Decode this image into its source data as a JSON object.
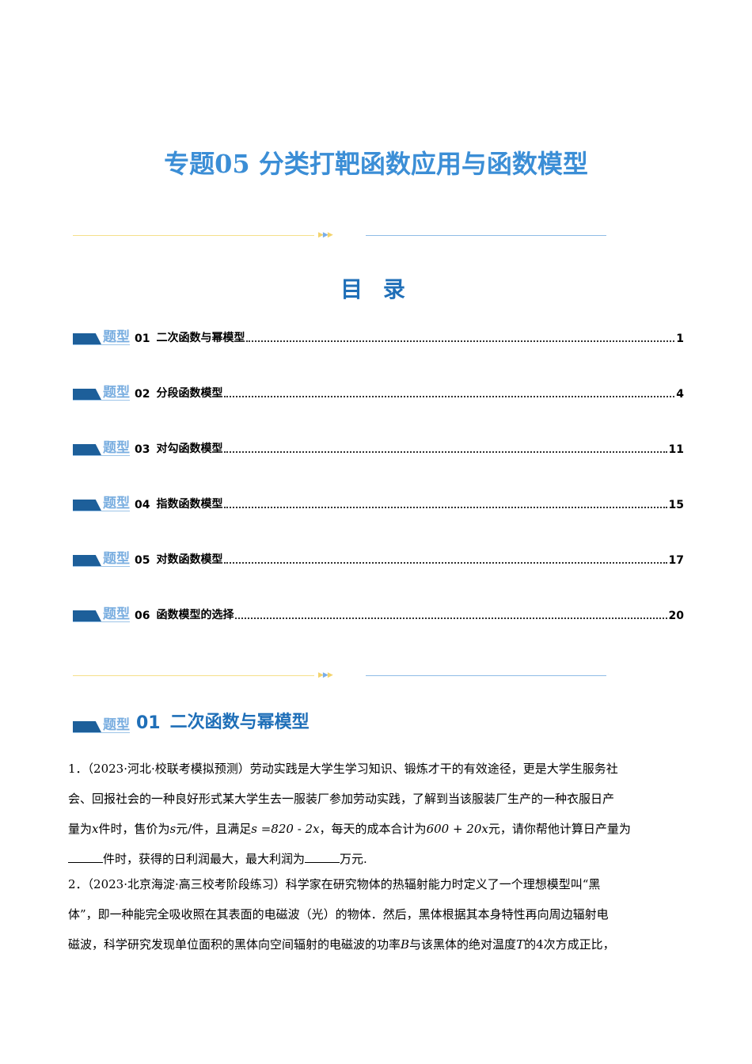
{
  "title": "专题05 分类打靶函数应用与函数模型",
  "toc_title": "目 录",
  "badge_text": "题型",
  "toc": [
    {
      "num": "01",
      "label": "二次函数与幂模型",
      "page": "1"
    },
    {
      "num": "02",
      "label": "分段函数模型",
      "page": "4"
    },
    {
      "num": "03",
      "label": "对勾函数模型",
      "page": "11"
    },
    {
      "num": "04",
      "label": "指数函数模型",
      "page": "15"
    },
    {
      "num": "05",
      "label": "对数函数模型",
      "page": "17"
    },
    {
      "num": "06",
      "label": "函数模型的选择",
      "page": "20"
    }
  ],
  "section": {
    "num": "01",
    "label": "二次函数与幂模型"
  },
  "q1": {
    "l1": "1．（2023·河北·校联考模拟预测）劳动实践是大学生学习知识、锻炼才干的有效途径，更是大学生服务社",
    "l2": "会、回报社会的一种良好形式某大学生去一服装厂参加劳动实践，了解到当该服装厂生产的一种衣服日产",
    "l3a": "量为",
    "x": "x",
    "l3b": "件时，售价为",
    "s": "s",
    "l3c": "元/件，且满足",
    "eq1": "s =820 - 2x",
    "l3d": "，每天的成本合计为",
    "eq2": "600 + 20x",
    "l3e": "元，请你帮他计算日产量为",
    "l4a": "件时，获得的日利润最大，最大利润为",
    "l4b": "万元."
  },
  "q2": {
    "l1": "2．（2023·北京海淀·高三校考阶段练习）科学家在研究物体的热辐射能力时定义了一个理想模型叫“黑",
    "l2": "体”，即一种能完全吸收照在其表面的电磁波（光）的物体．然后，黑体根据其本身特性再向周边辐射电",
    "l3a": "磁波，科学研究发现单位面积的黑体向空间辐射的电磁波的功率",
    "B": "B",
    "l3b": "与该黑体的绝对温度",
    "T": "T",
    "l3c": "的",
    "n4": "4",
    "l3d": "次方成正比，"
  }
}
